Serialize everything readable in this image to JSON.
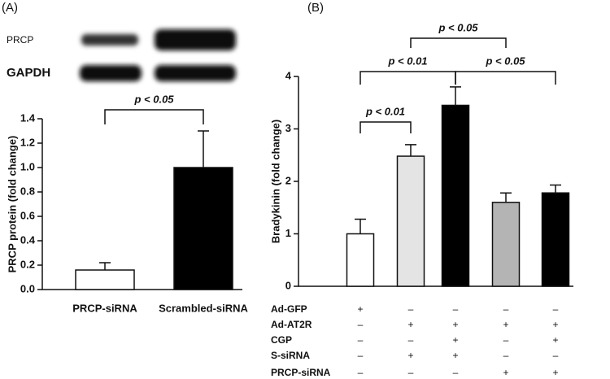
{
  "chart_data": [
    {
      "type": "bar",
      "panel_label": "(A)",
      "blot_labels": [
        "PRCP",
        "GAPDH"
      ],
      "ylabel": "PRCP protein (fold change)",
      "categories": [
        "PRCP-siRNA",
        "Scrambled-siRNA"
      ],
      "values": [
        0.16,
        1.0
      ],
      "errors": [
        0.06,
        0.3
      ],
      "colors": [
        "#ffffff",
        "#000000"
      ],
      "ylim": [
        0,
        1.4
      ],
      "yticks": [
        {
          "value": 0,
          "label": "0.0"
        },
        0.2,
        0.4,
        0.6,
        0.8,
        {
          "value": 1,
          "label": "1.0"
        },
        1.2,
        1.4
      ],
      "annotations": [
        "p < 0.05"
      ]
    },
    {
      "type": "bar",
      "panel_label": "(B)",
      "ylabel": "Bradykinin (fold change)",
      "categories": [
        null,
        null,
        null,
        null,
        null
      ],
      "values": [
        1.0,
        2.48,
        3.45,
        1.6,
        1.78
      ],
      "errors": [
        0.28,
        0.22,
        0.35,
        0.18,
        0.15
      ],
      "colors": [
        "#ffffff",
        "#e4e4e4",
        "#000000",
        "#b4b4b4",
        "#000000"
      ],
      "ylim": [
        0,
        4
      ],
      "yticks": [
        0,
        1,
        2,
        3,
        4
      ],
      "annotations": [
        "p < 0.01",
        "p < 0.01",
        "p < 0.05",
        "p < 0.05"
      ],
      "treatments": [
        {
          "name": "Ad-GFP",
          "signs": [
            "+",
            "–",
            "–",
            "–",
            "–"
          ]
        },
        {
          "name": "Ad-AT2R",
          "signs": [
            "–",
            "+",
            "+",
            "+",
            "+"
          ]
        },
        {
          "name": "CGP",
          "signs": [
            "–",
            "–",
            "+",
            "–",
            "+"
          ]
        },
        {
          "name": "S-siRNA",
          "signs": [
            "–",
            "+",
            "+",
            "–",
            "–"
          ]
        },
        {
          "name": "PRCP-siRNA",
          "signs": [
            "–",
            "–",
            "–",
            "+",
            "+"
          ]
        }
      ]
    }
  ]
}
